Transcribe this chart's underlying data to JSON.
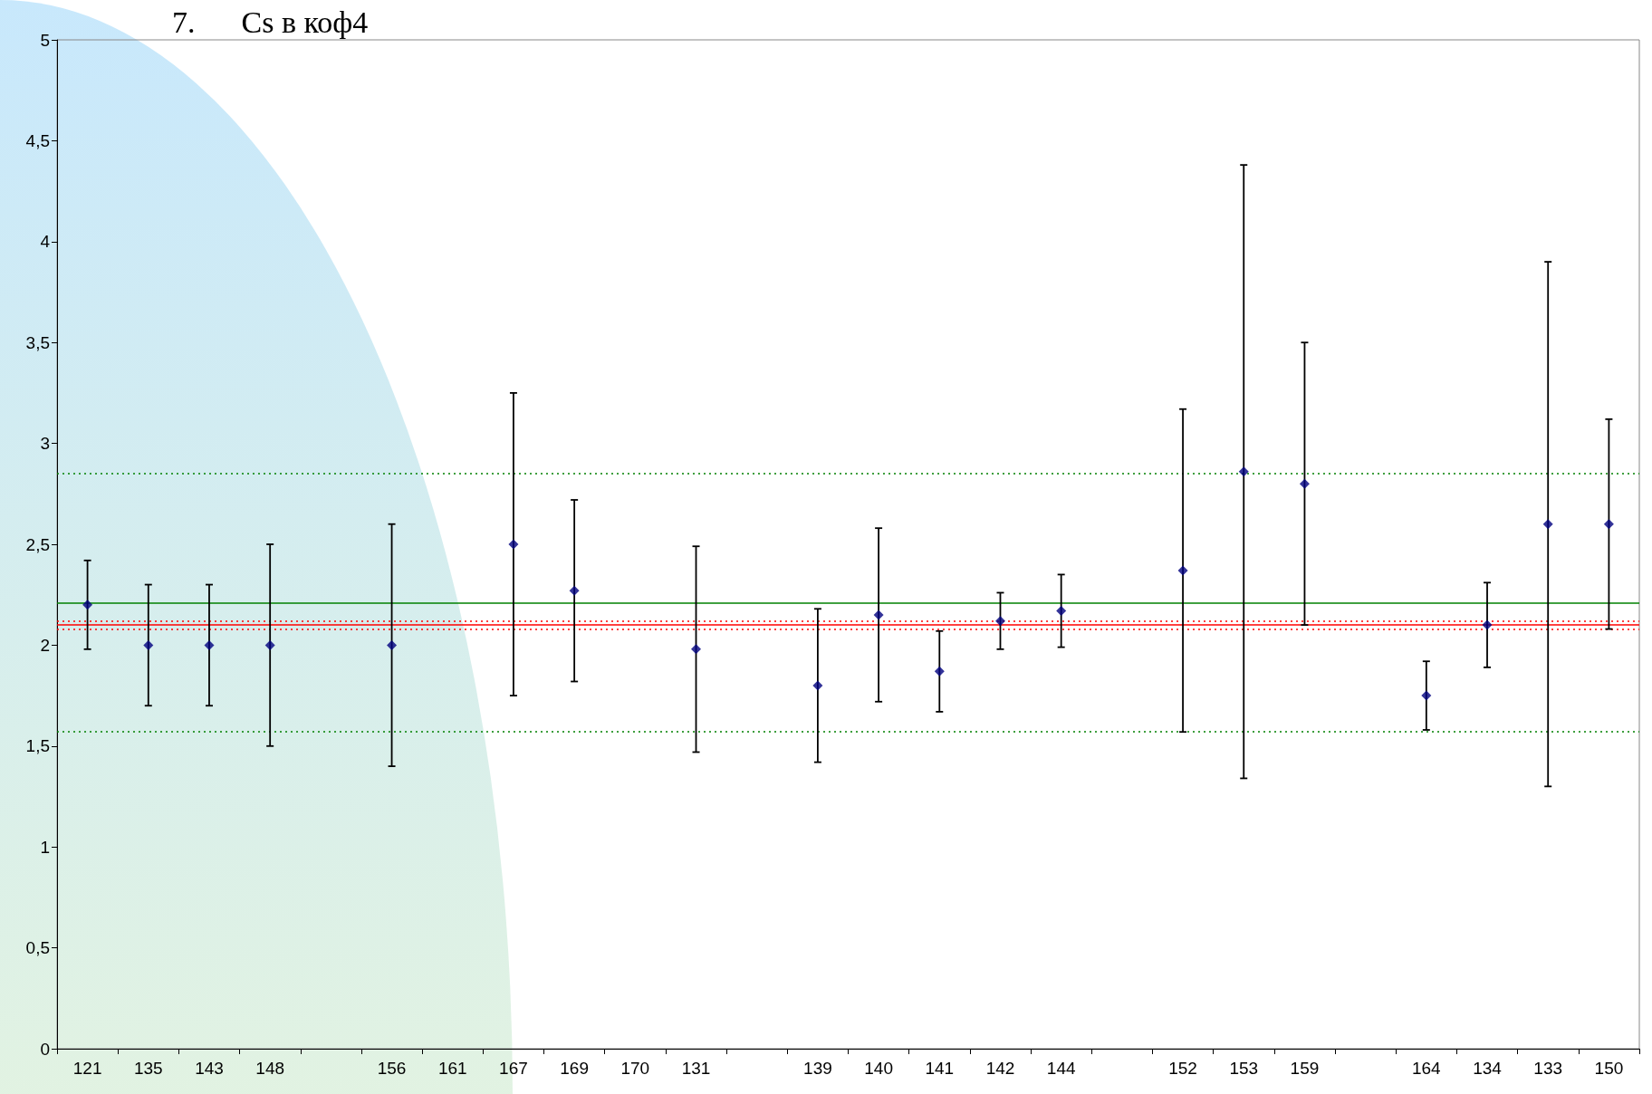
{
  "chart_data": {
    "type": "scatter",
    "title": "7.      Cs в коф4",
    "categories": [
      "121",
      "135",
      "143",
      "148",
      null,
      "156",
      "161",
      "167",
      "169",
      "170",
      "131",
      null,
      "139",
      "140",
      "141",
      "142",
      "144",
      null,
      "152",
      "153",
      "159",
      null,
      "164",
      "134",
      "133",
      "150"
    ],
    "values": [
      2.2,
      2.0,
      2.0,
      2.0,
      null,
      2.0,
      null,
      2.5,
      2.27,
      null,
      1.98,
      null,
      1.8,
      2.15,
      1.87,
      2.12,
      2.17,
      null,
      2.37,
      2.86,
      2.8,
      null,
      1.75,
      2.1,
      2.6,
      2.6
    ],
    "errors": [
      0.22,
      0.3,
      0.3,
      0.5,
      null,
      0.6,
      null,
      0.75,
      0.45,
      null,
      0.51,
      null,
      0.38,
      0.43,
      0.2,
      0.14,
      0.18,
      null,
      0.8,
      1.52,
      0.7,
      null,
      0.17,
      0.21,
      1.3,
      0.52
    ],
    "color": "#000080",
    "marker": "diamond",
    "ylim": [
      0,
      5
    ],
    "yticks": [
      0,
      {
        "value": 0.5,
        "label": "0,5"
      },
      1,
      {
        "value": 1.5,
        "label": "1,5"
      },
      2,
      {
        "value": 2.5,
        "label": "2,5"
      },
      3,
      {
        "value": 3.5,
        "label": "3,5"
      },
      4,
      {
        "value": 4.5,
        "label": "4,5"
      },
      5
    ],
    "grid": false,
    "ref_lines": [
      {
        "axis": "y",
        "value": 2.85,
        "color": "#008000",
        "line_style": "dotted"
      },
      {
        "axis": "y",
        "value": 2.21,
        "color": "#008000",
        "line_style": "solid"
      },
      {
        "axis": "y",
        "value": 1.57,
        "color": "#008000",
        "line_style": "dotted"
      },
      {
        "axis": "y",
        "value": 2.12,
        "color": "#ff0000",
        "line_style": "dotted"
      },
      {
        "axis": "y",
        "value": 2.1,
        "color": "#ff0000",
        "line_style": "solid"
      },
      {
        "axis": "y",
        "value": 2.08,
        "color": "#ff0000",
        "line_style": "dotted"
      }
    ]
  }
}
